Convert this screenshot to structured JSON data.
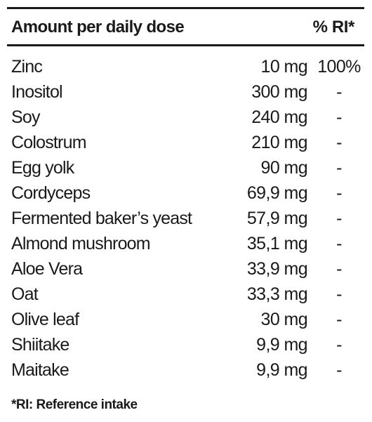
{
  "table": {
    "header": {
      "name": "Amount per daily dose",
      "ri": "% RI*"
    },
    "rows": [
      {
        "name": "Zinc",
        "amount": "10 mg",
        "ri": "100%"
      },
      {
        "name": "Inositol",
        "amount": "300 mg",
        "ri": "-"
      },
      {
        "name": "Soy",
        "amount": "240 mg",
        "ri": "-"
      },
      {
        "name": "Colostrum",
        "amount": "210 mg",
        "ri": "-"
      },
      {
        "name": "Egg yolk",
        "amount": "90 mg",
        "ri": "-"
      },
      {
        "name": "Cordyceps",
        "amount": "69,9 mg",
        "ri": "-"
      },
      {
        "name": "Fermented baker’s yeast",
        "amount": "57,9 mg",
        "ri": "-"
      },
      {
        "name": "Almond mushroom",
        "amount": "35,1 mg",
        "ri": "-"
      },
      {
        "name": "Aloe Vera",
        "amount": "33,9 mg",
        "ri": "-"
      },
      {
        "name": "Oat",
        "amount": "33,3 mg",
        "ri": "-"
      },
      {
        "name": "Olive leaf",
        "amount": "30 mg",
        "ri": "-"
      },
      {
        "name": "Shiitake",
        "amount": "9,9 mg",
        "ri": "-"
      },
      {
        "name": "Maitake",
        "amount": "9,9 mg",
        "ri": "-"
      }
    ]
  },
  "footnote": "*RI: Reference intake"
}
